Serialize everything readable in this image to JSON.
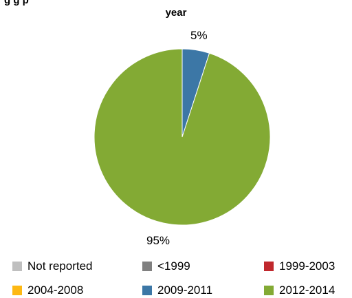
{
  "chart_data": {
    "type": "pie",
    "title_line1": "g                  g                  p",
    "title_line2": "year",
    "slices": [
      {
        "name": "Not reported",
        "value": 0,
        "color": "#BFBFBF"
      },
      {
        "name": "<1999",
        "value": 0,
        "color": "#808080"
      },
      {
        "name": "1999-2003",
        "value": 0,
        "color": "#C0282D"
      },
      {
        "name": "2004-2008",
        "value": 0,
        "color": "#FDB813"
      },
      {
        "name": "2009-2011",
        "value": 5,
        "color": "#3C77A6"
      },
      {
        "name": "2012-2014",
        "value": 95,
        "color": "#83AA34"
      }
    ],
    "data_labels": [
      {
        "series": "2009-2011",
        "text": "5%"
      },
      {
        "series": "2012-2014",
        "text": "95%"
      }
    ],
    "legend_position": "bottom"
  }
}
